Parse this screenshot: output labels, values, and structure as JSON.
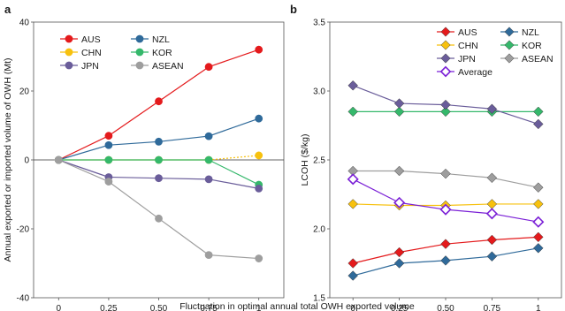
{
  "figure": {
    "xlabel": "Fluctuation in optimal annual total OWH exported volume"
  },
  "colors": {
    "AUS": "#e41a1c",
    "NZL": "#2f6a9a",
    "CHN": "#f7c10e",
    "KOR": "#35b86b",
    "JPN": "#6a5d9a",
    "ASEAN": "#9e9e9e",
    "Average": "#7a1fd6"
  },
  "chart_data": [
    {
      "panel": "a",
      "type": "line",
      "xlabel": "",
      "ylabel": "Annual exported or imported volume of OWH (Mt)",
      "x": [
        0,
        0.25,
        0.5,
        0.75,
        1
      ],
      "x_tick_labels": [
        "0",
        "0.25",
        "0.50",
        "0.75",
        "1"
      ],
      "xlim": [
        -0.125,
        1.125
      ],
      "ylim": [
        -40,
        40
      ],
      "y_ticks": [
        -40,
        -20,
        0,
        20,
        40
      ],
      "marker": "circle",
      "zero_line": true,
      "legend_position": "top-left",
      "series": [
        {
          "name": "AUS",
          "values": [
            0,
            7,
            17,
            27,
            32
          ]
        },
        {
          "name": "NZL",
          "values": [
            0,
            4.3,
            5.3,
            6.9,
            12
          ]
        },
        {
          "name": "CHN",
          "values": [
            0,
            0,
            0,
            0,
            1.3
          ]
        },
        {
          "name": "KOR",
          "values": [
            0,
            0,
            0,
            0,
            -7.2
          ]
        },
        {
          "name": "JPN",
          "values": [
            0,
            -5,
            -5.3,
            -5.6,
            -8.3
          ]
        },
        {
          "name": "ASEAN",
          "values": [
            0,
            -6.3,
            -17,
            -27.6,
            -28.6
          ]
        }
      ]
    },
    {
      "panel": "b",
      "type": "line",
      "xlabel": "",
      "ylabel": "LCOH ($/kg)",
      "x": [
        0,
        0.25,
        0.5,
        0.75,
        1
      ],
      "x_tick_labels": [
        "0",
        "0.25",
        "0.50",
        "0.75",
        "1"
      ],
      "xlim": [
        -0.125,
        1.125
      ],
      "ylim": [
        1.5,
        3.5
      ],
      "y_ticks": [
        1.5,
        2.0,
        2.5,
        3.0,
        3.5
      ],
      "y_tick_labels": [
        "1.5",
        "2.0",
        "2.5",
        "3.0",
        "3.5"
      ],
      "marker": "diamond",
      "legend_position": "top-right",
      "series": [
        {
          "name": "AUS",
          "values": [
            1.75,
            1.83,
            1.89,
            1.92,
            1.94
          ]
        },
        {
          "name": "NZL",
          "values": [
            1.66,
            1.75,
            1.77,
            1.8,
            1.86
          ]
        },
        {
          "name": "CHN",
          "values": [
            2.18,
            2.17,
            2.17,
            2.18,
            2.18
          ]
        },
        {
          "name": "KOR",
          "values": [
            2.85,
            2.85,
            2.85,
            2.85,
            2.85
          ]
        },
        {
          "name": "JPN",
          "values": [
            3.04,
            2.91,
            2.9,
            2.87,
            2.76
          ]
        },
        {
          "name": "ASEAN",
          "values": [
            2.42,
            2.42,
            2.4,
            2.37,
            2.3
          ]
        },
        {
          "name": "Average",
          "values": [
            2.36,
            2.19,
            2.14,
            2.11,
            2.05
          ],
          "hollow": true
        }
      ]
    }
  ]
}
